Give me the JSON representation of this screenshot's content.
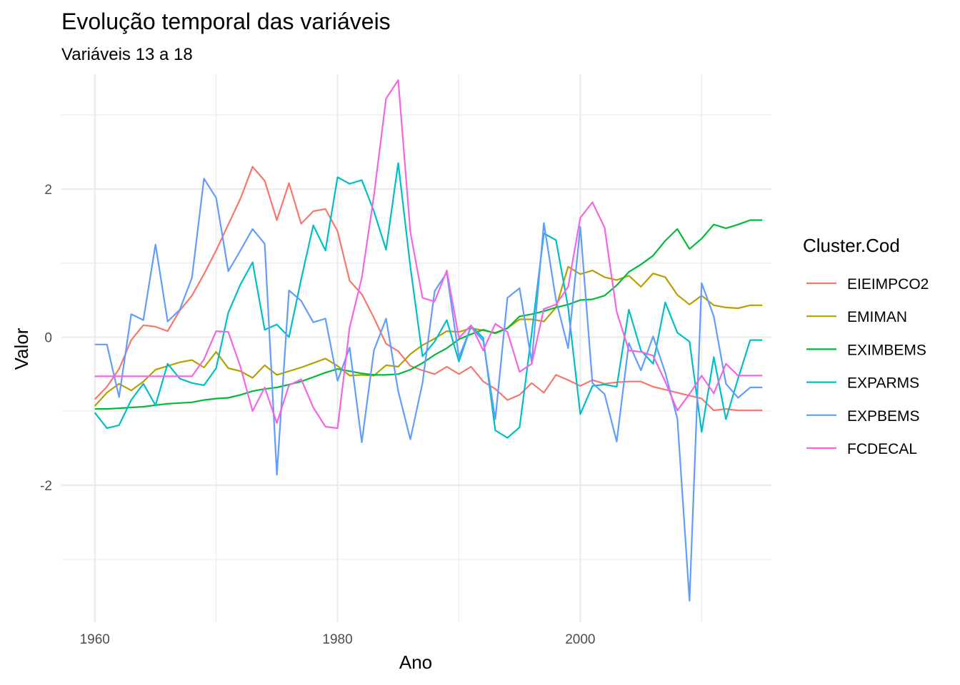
{
  "chart_data": {
    "type": "line",
    "title": "Evolução temporal das variáveis",
    "subtitle": "Variáveis 13 a 18",
    "xlabel": "Ano",
    "ylabel": "Valor",
    "xlim": [
      1957.25,
      2015.75
    ],
    "ylim": [
      -3.85,
      3.55
    ],
    "x_ticks": [
      1960,
      1980,
      2000
    ],
    "y_ticks": [
      -2,
      0,
      2
    ],
    "grid": true,
    "legend": {
      "title": "Cluster.Cod",
      "position": "right"
    },
    "x": [
      1960,
      1961,
      1962,
      1963,
      1964,
      1965,
      1966,
      1967,
      1968,
      1969,
      1970,
      1971,
      1972,
      1973,
      1974,
      1975,
      1976,
      1977,
      1978,
      1979,
      1980,
      1981,
      1982,
      1983,
      1984,
      1985,
      1986,
      1987,
      1988,
      1989,
      1990,
      1991,
      1992,
      1993,
      1994,
      1995,
      1996,
      1997,
      1998,
      1999,
      2000,
      2001,
      2002,
      2003,
      2004,
      2005,
      2006,
      2007,
      2008,
      2009,
      2010,
      2011,
      2012,
      2013,
      2014,
      2015
    ],
    "series": [
      {
        "name": "EIEIMPCO2",
        "color": "#F8766D",
        "values": [
          -0.84,
          -0.67,
          -0.43,
          -0.04,
          0.16,
          0.14,
          0.08,
          0.36,
          0.56,
          0.85,
          1.17,
          1.52,
          1.87,
          2.3,
          2.11,
          1.58,
          2.08,
          1.53,
          1.7,
          1.73,
          1.43,
          0.76,
          0.58,
          0.26,
          -0.09,
          -0.19,
          -0.39,
          -0.45,
          -0.5,
          -0.4,
          -0.5,
          -0.4,
          -0.6,
          -0.7,
          -0.85,
          -0.78,
          -0.62,
          -0.75,
          -0.51,
          -0.58,
          -0.66,
          -0.58,
          -0.63,
          -0.61,
          -0.6,
          -0.6,
          -0.67,
          -0.71,
          -0.75,
          -0.79,
          -0.83,
          -0.99,
          -0.97,
          -0.99,
          -0.99,
          -0.99
        ]
      },
      {
        "name": "EMIMAN",
        "color": "#B79F00",
        "values": [
          -0.93,
          -0.75,
          -0.63,
          -0.72,
          -0.6,
          -0.44,
          -0.39,
          -0.34,
          -0.31,
          -0.41,
          -0.2,
          -0.42,
          -0.46,
          -0.55,
          -0.38,
          -0.51,
          -0.46,
          -0.41,
          -0.35,
          -0.29,
          -0.39,
          -0.52,
          -0.51,
          -0.52,
          -0.38,
          -0.4,
          -0.23,
          -0.11,
          -0.02,
          0.08,
          0.07,
          0.12,
          0.09,
          0.06,
          0.12,
          0.24,
          0.24,
          0.21,
          0.4,
          0.95,
          0.85,
          0.9,
          0.81,
          0.77,
          0.83,
          0.68,
          0.86,
          0.81,
          0.57,
          0.44,
          0.56,
          0.43,
          0.4,
          0.39,
          0.43,
          0.43
        ]
      },
      {
        "name": "EXIMBEMS",
        "color": "#00BA38",
        "values": [
          -0.97,
          -0.97,
          -0.96,
          -0.95,
          -0.94,
          -0.92,
          -0.9,
          -0.89,
          -0.88,
          -0.85,
          -0.83,
          -0.82,
          -0.78,
          -0.73,
          -0.7,
          -0.68,
          -0.64,
          -0.6,
          -0.54,
          -0.48,
          -0.43,
          -0.46,
          -0.49,
          -0.51,
          -0.51,
          -0.5,
          -0.44,
          -0.35,
          -0.24,
          -0.15,
          -0.03,
          0.04,
          0.1,
          0.05,
          0.12,
          0.28,
          0.31,
          0.35,
          0.4,
          0.44,
          0.5,
          0.51,
          0.56,
          0.7,
          0.88,
          0.98,
          1.1,
          1.3,
          1.46,
          1.19,
          1.33,
          1.52,
          1.47,
          1.52,
          1.58,
          1.58
        ]
      },
      {
        "name": "EXPARMS",
        "color": "#00BFC4",
        "values": [
          -1.02,
          -1.23,
          -1.19,
          -0.85,
          -0.63,
          -0.92,
          -0.36,
          -0.56,
          -0.62,
          -0.65,
          -0.42,
          0.33,
          0.71,
          1.01,
          0.1,
          0.17,
          0.0,
          0.78,
          1.51,
          1.17,
          2.16,
          2.07,
          2.12,
          1.7,
          1.18,
          2.35,
          0.95,
          -0.26,
          -0.06,
          0.23,
          -0.33,
          0.15,
          -0.01,
          -1.26,
          -1.36,
          -1.22,
          0.05,
          1.4,
          1.31,
          0.4,
          -1.04,
          -0.66,
          -0.64,
          -0.67,
          0.37,
          -0.18,
          -0.36,
          0.47,
          0.06,
          -0.06,
          -1.28,
          -0.27,
          -1.11,
          -0.56,
          -0.04,
          -0.04
        ]
      },
      {
        "name": "EXPBEMS",
        "color": "#619CFF",
        "values": [
          -0.1,
          -0.1,
          -0.81,
          0.31,
          0.23,
          1.25,
          0.21,
          0.37,
          0.8,
          2.14,
          1.88,
          0.89,
          1.17,
          1.46,
          1.26,
          -1.86,
          0.63,
          0.49,
          0.2,
          0.25,
          -0.59,
          -0.14,
          -1.42,
          -0.18,
          0.25,
          -0.73,
          -1.38,
          -0.62,
          0.62,
          0.87,
          -0.27,
          0.14,
          -0.05,
          -1.11,
          0.53,
          0.66,
          -0.34,
          1.54,
          0.5,
          -0.15,
          1.49,
          -0.62,
          -0.77,
          -1.41,
          -0.08,
          -0.45,
          0.01,
          -0.48,
          -1.1,
          -3.56,
          0.73,
          0.28,
          -0.63,
          -0.82,
          -0.68,
          -0.68
        ]
      },
      {
        "name": "FCDECAL",
        "color": "#F564E3",
        "values": [
          -0.53,
          -0.53,
          -0.53,
          -0.53,
          -0.53,
          -0.53,
          -0.53,
          -0.53,
          -0.53,
          -0.3,
          0.08,
          0.07,
          -0.4,
          -1.0,
          -0.68,
          -1.16,
          -0.65,
          -0.57,
          -0.95,
          -1.21,
          -1.23,
          0.13,
          0.8,
          1.91,
          3.22,
          3.47,
          1.42,
          0.53,
          0.48,
          0.9,
          -0.01,
          0.16,
          -0.18,
          0.18,
          0.07,
          -0.47,
          -0.36,
          0.38,
          0.44,
          0.68,
          1.61,
          1.82,
          1.48,
          0.34,
          -0.18,
          -0.2,
          -0.25,
          -0.6,
          -0.99,
          -0.77,
          -0.52,
          -0.76,
          -0.36,
          -0.52,
          -0.52,
          -0.52
        ]
      }
    ]
  }
}
